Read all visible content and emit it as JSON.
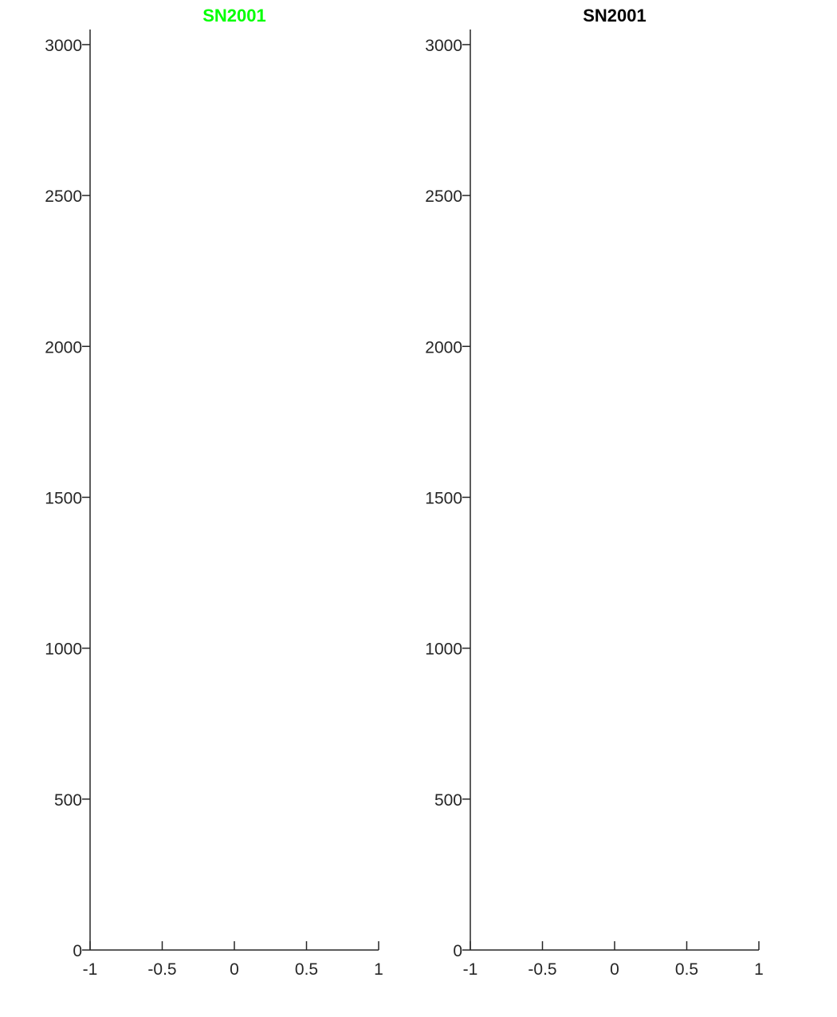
{
  "chart_data": [
    {
      "type": "line",
      "title": "SN2001",
      "title_color": "#00ff00",
      "xlabel": "",
      "ylabel": "",
      "xlim": [
        -1,
        1
      ],
      "ylim": [
        0,
        3050
      ],
      "xticks": [
        -1,
        -0.5,
        0,
        0.5,
        1
      ],
      "xtick_labels": [
        "-1",
        "-0.5",
        "0",
        "0.5",
        "1"
      ],
      "yticks": [
        0,
        500,
        1000,
        1500,
        2000,
        2500,
        3000
      ],
      "ytick_labels": [
        "0",
        "500",
        "1000",
        "1500",
        "2000",
        "2500",
        "3000"
      ],
      "grid": false,
      "series": []
    },
    {
      "type": "line",
      "title": "SN2001",
      "title_color": "#000000",
      "xlabel": "",
      "ylabel": "",
      "xlim": [
        -1,
        1
      ],
      "ylim": [
        0,
        3050
      ],
      "xticks": [
        -1,
        -0.5,
        0,
        0.5,
        1
      ],
      "xtick_labels": [
        "-1",
        "-0.5",
        "0",
        "0.5",
        "1"
      ],
      "yticks": [
        0,
        500,
        1000,
        1500,
        2000,
        2500,
        3000
      ],
      "ytick_labels": [
        "0",
        "500",
        "1000",
        "1500",
        "2000",
        "2500",
        "3000"
      ],
      "grid": false,
      "series": []
    }
  ]
}
